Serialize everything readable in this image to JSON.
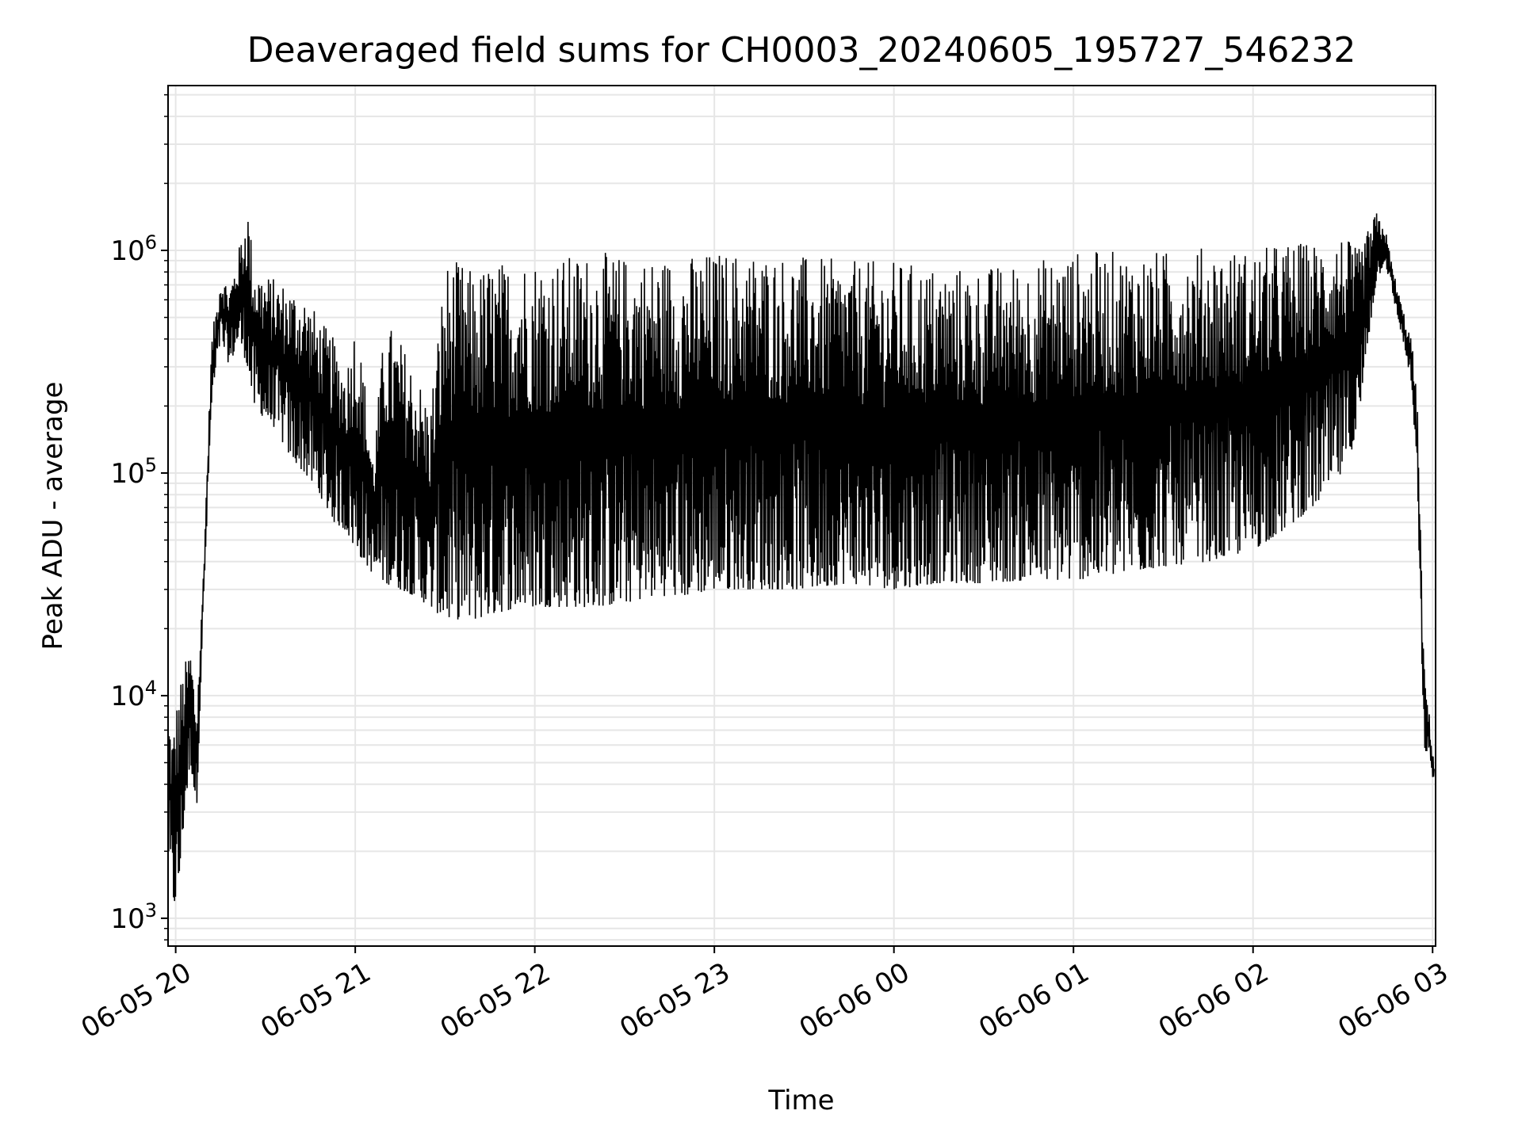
{
  "chart_data": {
    "type": "line",
    "title": "Deaveraged field sums for CH0003_20240605_195727_546232",
    "xlabel": "Time",
    "ylabel": "Peak ADU - average",
    "yscale": "log",
    "ylim": [
      750,
      5500000
    ],
    "xlim": [
      "2024-06-05 19:57:27",
      "2024-06-06 03:01:00"
    ],
    "grid": true,
    "line_color": "#000000",
    "x_ticks": [
      {
        "value": "2024-06-05 20:00",
        "label": "06-05 20"
      },
      {
        "value": "2024-06-05 21:00",
        "label": "06-05 21"
      },
      {
        "value": "2024-06-05 22:00",
        "label": "06-05 22"
      },
      {
        "value": "2024-06-05 23:00",
        "label": "06-05 23"
      },
      {
        "value": "2024-06-06 00:00",
        "label": "06-06 00"
      },
      {
        "value": "2024-06-06 01:00",
        "label": "06-06 01"
      },
      {
        "value": "2024-06-06 02:00",
        "label": "06-06 02"
      },
      {
        "value": "2024-06-06 03:00",
        "label": "06-06 03"
      }
    ],
    "y_ticks": [
      {
        "value": 1000,
        "base": "10",
        "exp": "3"
      },
      {
        "value": 10000,
        "base": "10",
        "exp": "4"
      },
      {
        "value": 100000,
        "base": "10",
        "exp": "5"
      },
      {
        "value": 1000000,
        "base": "10",
        "exp": "6"
      }
    ],
    "series": [
      {
        "x": [
          "2024-06-05 19:57:30",
          "2024-06-05 19:59:00",
          "2024-06-05 20:01:00",
          "2024-06-05 20:03:00",
          "2024-06-05 20:05:00",
          "2024-06-05 20:07:00",
          "2024-06-05 20:09:00",
          "2024-06-05 20:12:00",
          "2024-06-05 20:15:00",
          "2024-06-05 20:18:00",
          "2024-06-05 20:21:00",
          "2024-06-05 20:24:00",
          "2024-06-05 20:26:00",
          "2024-06-05 20:29:00",
          "2024-06-05 20:33:00",
          "2024-06-05 20:38:00",
          "2024-06-05 20:43:00",
          "2024-06-05 20:48:00",
          "2024-06-05 20:53:00",
          "2024-06-05 20:57:00",
          "2024-06-05 21:00:00",
          "2024-06-05 21:03:00",
          "2024-06-05 21:06:00",
          "2024-06-05 21:10:00",
          "2024-06-05 21:15:00",
          "2024-06-05 21:20:00",
          "2024-06-05 21:25:00",
          "2024-06-05 21:30:00",
          "2024-06-05 21:35:00",
          "2024-06-05 21:40:00",
          "2024-06-05 21:45:00",
          "2024-06-05 21:50:00",
          "2024-06-05 21:55:00",
          "2024-06-05 22:00:00",
          "2024-06-05 22:10:00",
          "2024-06-05 22:20:00",
          "2024-06-05 22:30:00",
          "2024-06-05 22:40:00",
          "2024-06-05 22:50:00",
          "2024-06-05 23:00:00",
          "2024-06-05 23:15:00",
          "2024-06-05 23:30:00",
          "2024-06-05 23:45:00",
          "2024-06-06 00:00:00",
          "2024-06-06 00:15:00",
          "2024-06-06 00:30:00",
          "2024-06-06 00:45:00",
          "2024-06-06 01:00:00",
          "2024-06-06 01:15:00",
          "2024-06-06 01:30:00",
          "2024-06-06 01:45:00",
          "2024-06-06 02:00:00",
          "2024-06-06 02:10:00",
          "2024-06-06 02:20:00",
          "2024-06-06 02:30:00",
          "2024-06-06 02:35:00",
          "2024-06-06 02:38:00",
          "2024-06-06 02:41:00",
          "2024-06-06 02:44:00",
          "2024-06-06 02:47:00",
          "2024-06-06 02:50:00",
          "2024-06-06 02:53:00",
          "2024-06-06 02:55:00",
          "2024-06-06 02:57:00",
          "2024-06-06 02:59:00",
          "2024-06-06 03:00:30"
        ],
        "upper": [
          9000,
          7000,
          11000,
          14000,
          17000,
          9000,
          30000,
          400000,
          800000,
          700000,
          1000000,
          1700000,
          900000,
          800000,
          750000,
          700000,
          650000,
          500000,
          400000,
          300000,
          500000,
          280000,
          120000,
          500000,
          400000,
          300000,
          200000,
          900000,
          900000,
          800000,
          900000,
          900000,
          950000,
          950000,
          950000,
          1000000,
          950000,
          950000,
          950000,
          1000000,
          1000000,
          950000,
          900000,
          900000,
          850000,
          850000,
          900000,
          1000000,
          1000000,
          1000000,
          1050000,
          1000000,
          1100000,
          1100000,
          1200000,
          1000000,
          1200000,
          1500000,
          1300000,
          800000,
          550000,
          400000,
          200000,
          15000,
          8000,
          5000
        ],
        "lower": [
          2000,
          1100,
          1300,
          3000,
          5000,
          3000,
          20000,
          200000,
          400000,
          300000,
          400000,
          300000,
          200000,
          180000,
          160000,
          120000,
          100000,
          80000,
          60000,
          55000,
          45000,
          40000,
          35000,
          32000,
          30000,
          28000,
          25000,
          22000,
          22000,
          22000,
          23000,
          24000,
          25000,
          25000,
          25000,
          25000,
          26000,
          28000,
          28000,
          30000,
          30000,
          30000,
          32000,
          30000,
          32000,
          32000,
          33000,
          33000,
          35000,
          38000,
          40000,
          45000,
          55000,
          70000,
          100000,
          150000,
          350000,
          700000,
          900000,
          600000,
          400000,
          250000,
          80000,
          6000,
          5000,
          4000
        ]
      }
    ]
  }
}
